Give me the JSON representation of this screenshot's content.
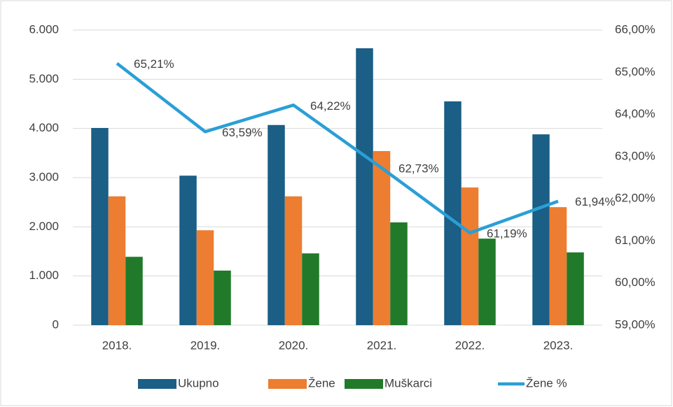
{
  "chart_data": {
    "type": "bar-line",
    "categories": [
      "2018.",
      "2019.",
      "2020.",
      "2021.",
      "2022.",
      "2023."
    ],
    "series": [
      {
        "name": "Ukupno",
        "color": "#1b5e86",
        "values": [
          4010,
          3040,
          4070,
          5630,
          4550,
          3880
        ]
      },
      {
        "name": "Žene",
        "color": "#ed7d31",
        "values": [
          2620,
          1930,
          2620,
          3540,
          2800,
          2400
        ]
      },
      {
        "name": "Muškarci",
        "color": "#217a2a",
        "values": [
          1390,
          1110,
          1460,
          2090,
          1760,
          1480
        ]
      },
      {
        "name": "Žene  %",
        "color": "#2a9fd6",
        "type": "line",
        "axis": "y2",
        "values": [
          65.21,
          63.59,
          64.22,
          62.73,
          61.19,
          61.94
        ],
        "value_labels": [
          "65,21%",
          "63,59%",
          "64,22%",
          "62,73%",
          "61,19%",
          "61,94%"
        ]
      }
    ],
    "ylim": [
      0,
      6000
    ],
    "yticks": [
      0,
      {
        "value": 1000,
        "label": "1.000"
      },
      {
        "value": 2000,
        "label": "2.000"
      },
      {
        "value": 3000,
        "label": "3.000"
      },
      {
        "value": 4000,
        "label": "4.000"
      },
      {
        "value": 5000,
        "label": "5.000"
      },
      {
        "value": 6000,
        "label": "6.000"
      }
    ],
    "y2lim": [
      59,
      66
    ],
    "y2ticks": [
      {
        "value": 59,
        "label": "59,00%"
      },
      {
        "value": 60,
        "label": "60,00%"
      },
      {
        "value": 61,
        "label": "61,00%"
      },
      {
        "value": 62,
        "label": "62,00%"
      },
      {
        "value": 63,
        "label": "63,00%"
      },
      {
        "value": 64,
        "label": "64,00%"
      },
      {
        "value": 65,
        "label": "65,00%"
      },
      {
        "value": 66,
        "label": "66,00%"
      }
    ],
    "grid": true,
    "legend": "bottom"
  }
}
